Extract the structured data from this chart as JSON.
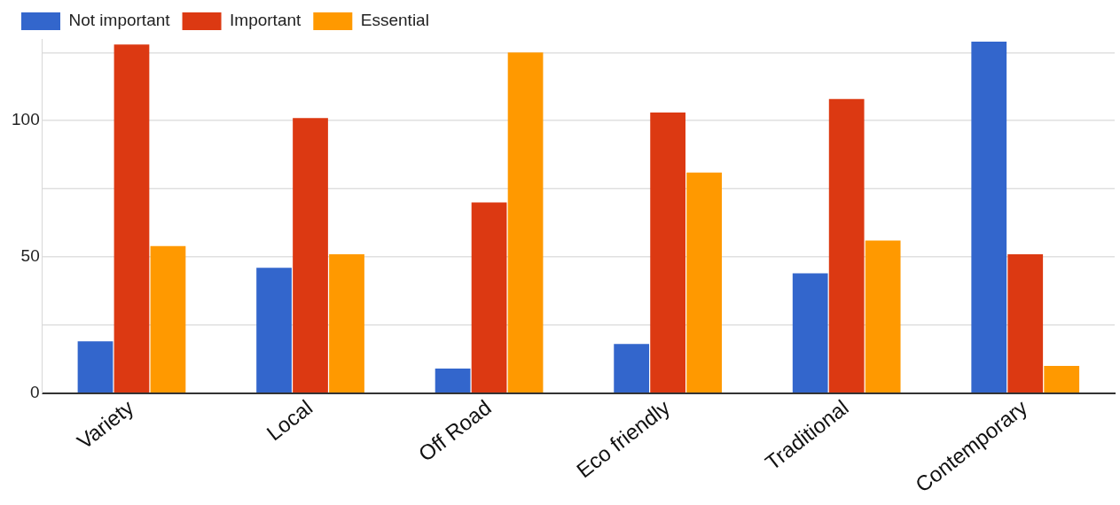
{
  "chart_data": {
    "type": "bar",
    "categories": [
      "Variety",
      "Local",
      "Off Road",
      "Eco friendly",
      "Traditional",
      "Contemporary"
    ],
    "series": [
      {
        "name": "Not important",
        "color": "#3366cc",
        "values": [
          19,
          46,
          9,
          18,
          44,
          129
        ]
      },
      {
        "name": "Important",
        "color": "#dc3912",
        "values": [
          128,
          101,
          70,
          103,
          108,
          51
        ]
      },
      {
        "name": "Essential",
        "color": "#ff9900",
        "values": [
          54,
          51,
          125,
          81,
          56,
          10
        ]
      }
    ],
    "ylim": [
      0,
      130
    ],
    "yticks": [
      0,
      {
        "value": 25,
        "label": null
      },
      50,
      {
        "value": 75,
        "label": null
      },
      100,
      {
        "value": 125,
        "label": null
      }
    ],
    "grid": "y",
    "legend": "top left"
  }
}
